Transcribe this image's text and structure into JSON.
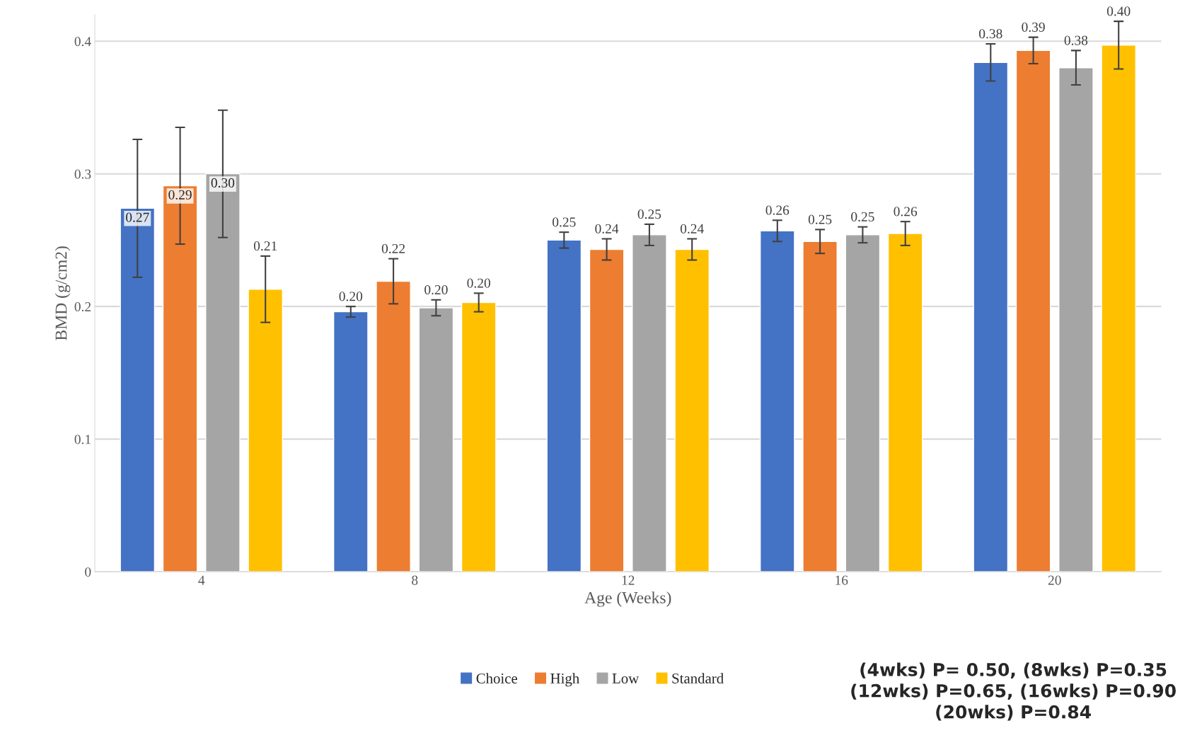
{
  "chart_data": {
    "type": "bar",
    "xlabel": "Age (Weeks)",
    "ylabel": "BMD (g/cm2)",
    "categories": [
      "4",
      "8",
      "12",
      "16",
      "20"
    ],
    "series": [
      {
        "name": "Choice",
        "color": "#4472c4",
        "values": [
          0.274,
          0.196,
          0.25,
          0.257,
          0.384
        ],
        "errors": [
          0.052,
          0.004,
          0.006,
          0.008,
          0.014
        ],
        "value_labels": [
          "0.27",
          "0.20",
          "0.25",
          "0.26",
          "0.38"
        ]
      },
      {
        "name": "High",
        "color": "#ed7d31",
        "values": [
          0.291,
          0.219,
          0.243,
          0.249,
          0.393
        ],
        "errors": [
          0.044,
          0.017,
          0.008,
          0.009,
          0.01
        ],
        "value_labels": [
          "0.29",
          "0.22",
          "0.24",
          "0.25",
          "0.39"
        ]
      },
      {
        "name": "Low",
        "color": "#a5a5a5",
        "values": [
          0.3,
          0.199,
          0.254,
          0.254,
          0.38
        ],
        "errors": [
          0.048,
          0.006,
          0.008,
          0.006,
          0.013
        ],
        "value_labels": [
          "0.30",
          "0.20",
          "0.25",
          "0.25",
          "0.38"
        ]
      },
      {
        "name": "Standard",
        "color": "#ffc000",
        "values": [
          0.213,
          0.203,
          0.243,
          0.255,
          0.397
        ],
        "errors": [
          0.025,
          0.007,
          0.008,
          0.009,
          0.018
        ],
        "value_labels": [
          "0.21",
          "0.20",
          "0.24",
          "0.26",
          "0.40"
        ]
      }
    ],
    "ylim": [
      0,
      0.42
    ],
    "yticks": [
      0,
      0.1,
      0.2,
      0.3,
      0.4
    ],
    "grid": "y",
    "legend": "bottom",
    "annotations": [
      "(4wks) P= 0.50, (8wks) P=0.35\n(12wks) P=0.65, (16wks) P=0.90\n(20wks) P=0.84"
    ]
  }
}
